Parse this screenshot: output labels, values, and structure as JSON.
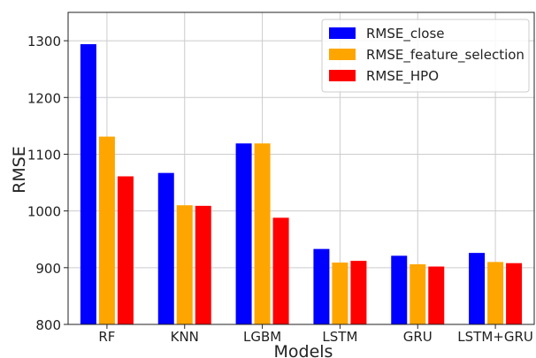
{
  "chart_data": {
    "type": "bar",
    "xlabel": "Models",
    "ylabel": "RMSE",
    "categories": [
      "RF",
      "KNN",
      "LGBM",
      "LSTM",
      "GRU",
      "LSTM+GRU"
    ],
    "ylim": [
      800,
      1350
    ],
    "yticks": [
      800,
      900,
      1000,
      1100,
      1200,
      1300
    ],
    "grid": true,
    "legend_position": "top-right",
    "series": [
      {
        "name": "RMSE_close",
        "color": "#0000ff",
        "values": [
          1294,
          1067,
          1119,
          933,
          921,
          926
        ]
      },
      {
        "name": "RMSE_feature_selection",
        "color": "#ffa500",
        "values": [
          1131,
          1010,
          1119,
          909,
          906,
          910
        ]
      },
      {
        "name": "RMSE_HPO",
        "color": "#ff0000",
        "values": [
          1061,
          1009,
          988,
          912,
          902,
          908
        ]
      }
    ]
  }
}
